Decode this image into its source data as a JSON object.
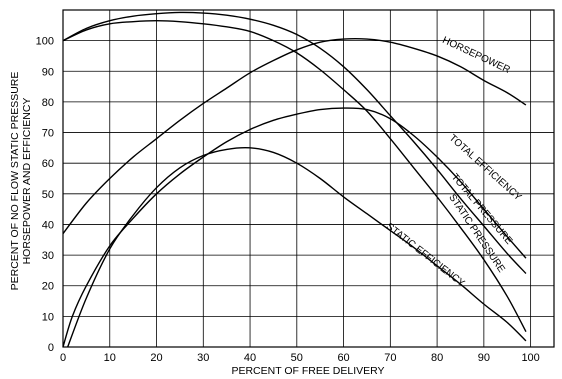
{
  "chart_data": {
    "type": "line",
    "title": "",
    "xlabel": "PERCENT OF FREE DELIVERY",
    "ylabel_line1": "PERCENT OF NO FLOW STATIC PRESSURE",
    "ylabel_line2": "HORSEPOWER AND EFFICIENCY",
    "xlim": [
      0,
      105
    ],
    "ylim": [
      0,
      110
    ],
    "xticks": [
      0,
      10,
      20,
      30,
      40,
      50,
      60,
      70,
      80,
      90,
      100
    ],
    "yticks": [
      0,
      10,
      20,
      30,
      40,
      50,
      60,
      70,
      80,
      90,
      100
    ],
    "grid": true,
    "legend": "none",
    "series": [
      {
        "name": "TOTAL PRESSURE",
        "x": [
          0,
          5,
          10,
          15,
          20,
          25,
          30,
          35,
          40,
          45,
          50,
          55,
          60,
          65,
          70,
          75,
          80,
          85,
          90,
          95,
          99
        ],
        "y": [
          100,
          104,
          106.5,
          108,
          108.8,
          109.2,
          109,
          108.3,
          107,
          105,
          102,
          97.5,
          91.5,
          84,
          75.5,
          67,
          58,
          48.5,
          39.5,
          30.5,
          24
        ]
      },
      {
        "name": "STATIC PRESSURE",
        "x": [
          0,
          5,
          10,
          15,
          20,
          25,
          30,
          35,
          40,
          45,
          50,
          55,
          60,
          65,
          70,
          75,
          80,
          85,
          90,
          95,
          99
        ],
        "y": [
          100,
          103.5,
          105.5,
          106.2,
          106.5,
          106.2,
          105.5,
          104.5,
          103,
          100,
          96,
          90.5,
          84,
          77,
          68,
          58.5,
          49,
          39,
          28.5,
          16.5,
          5
        ]
      },
      {
        "name": "HORSEPOWER",
        "x": [
          0,
          5,
          10,
          15,
          20,
          25,
          30,
          35,
          40,
          45,
          50,
          55,
          60,
          65,
          70,
          75,
          80,
          85,
          90,
          95,
          99
        ],
        "y": [
          37,
          47,
          55,
          62,
          68,
          74,
          79.5,
          84.5,
          89.5,
          93.5,
          97,
          99.5,
          100.5,
          100.5,
          99.5,
          97.5,
          95,
          91.5,
          87,
          83,
          79
        ]
      },
      {
        "name": "TOTAL EFFICIENCY",
        "x": [
          0,
          2,
          5,
          10,
          15,
          20,
          25,
          30,
          35,
          40,
          45,
          50,
          55,
          60,
          65,
          70,
          75,
          80,
          85,
          90,
          95,
          99
        ],
        "y": [
          0,
          10,
          20,
          33,
          42,
          50,
          56.5,
          62,
          67,
          71,
          74,
          76,
          77.5,
          78,
          77.5,
          74.5,
          69,
          62,
          54,
          45,
          36,
          29
        ]
      },
      {
        "name": "STATIC EFFICIENCY",
        "x": [
          1,
          5,
          10,
          15,
          20,
          25,
          30,
          35,
          40,
          45,
          50,
          55,
          60,
          65,
          70,
          75,
          80,
          85,
          90,
          95,
          99
        ],
        "y": [
          0,
          16,
          32,
          43,
          52,
          58.5,
          62.5,
          64.5,
          65,
          63.5,
          60,
          55,
          49,
          43.5,
          38,
          32.5,
          26.5,
          20.5,
          14,
          8,
          2
        ]
      }
    ],
    "curve_labels": [
      {
        "text": "HORSEPOWER",
        "x": 81,
        "y": 99.5,
        "angle": 25
      },
      {
        "text": "TOTAL EFFICIENCY",
        "x": 82.5,
        "y": 68,
        "angle": 42
      },
      {
        "text": "TOTAL PRESSURE",
        "x": 83,
        "y": 55.5,
        "angle": 50
      },
      {
        "text": "STATIC PRESSURE",
        "x": 82.5,
        "y": 49,
        "angle": 56
      },
      {
        "text": "STATIC EFFICIENCY",
        "x": 69,
        "y": 39,
        "angle": 38
      }
    ]
  }
}
